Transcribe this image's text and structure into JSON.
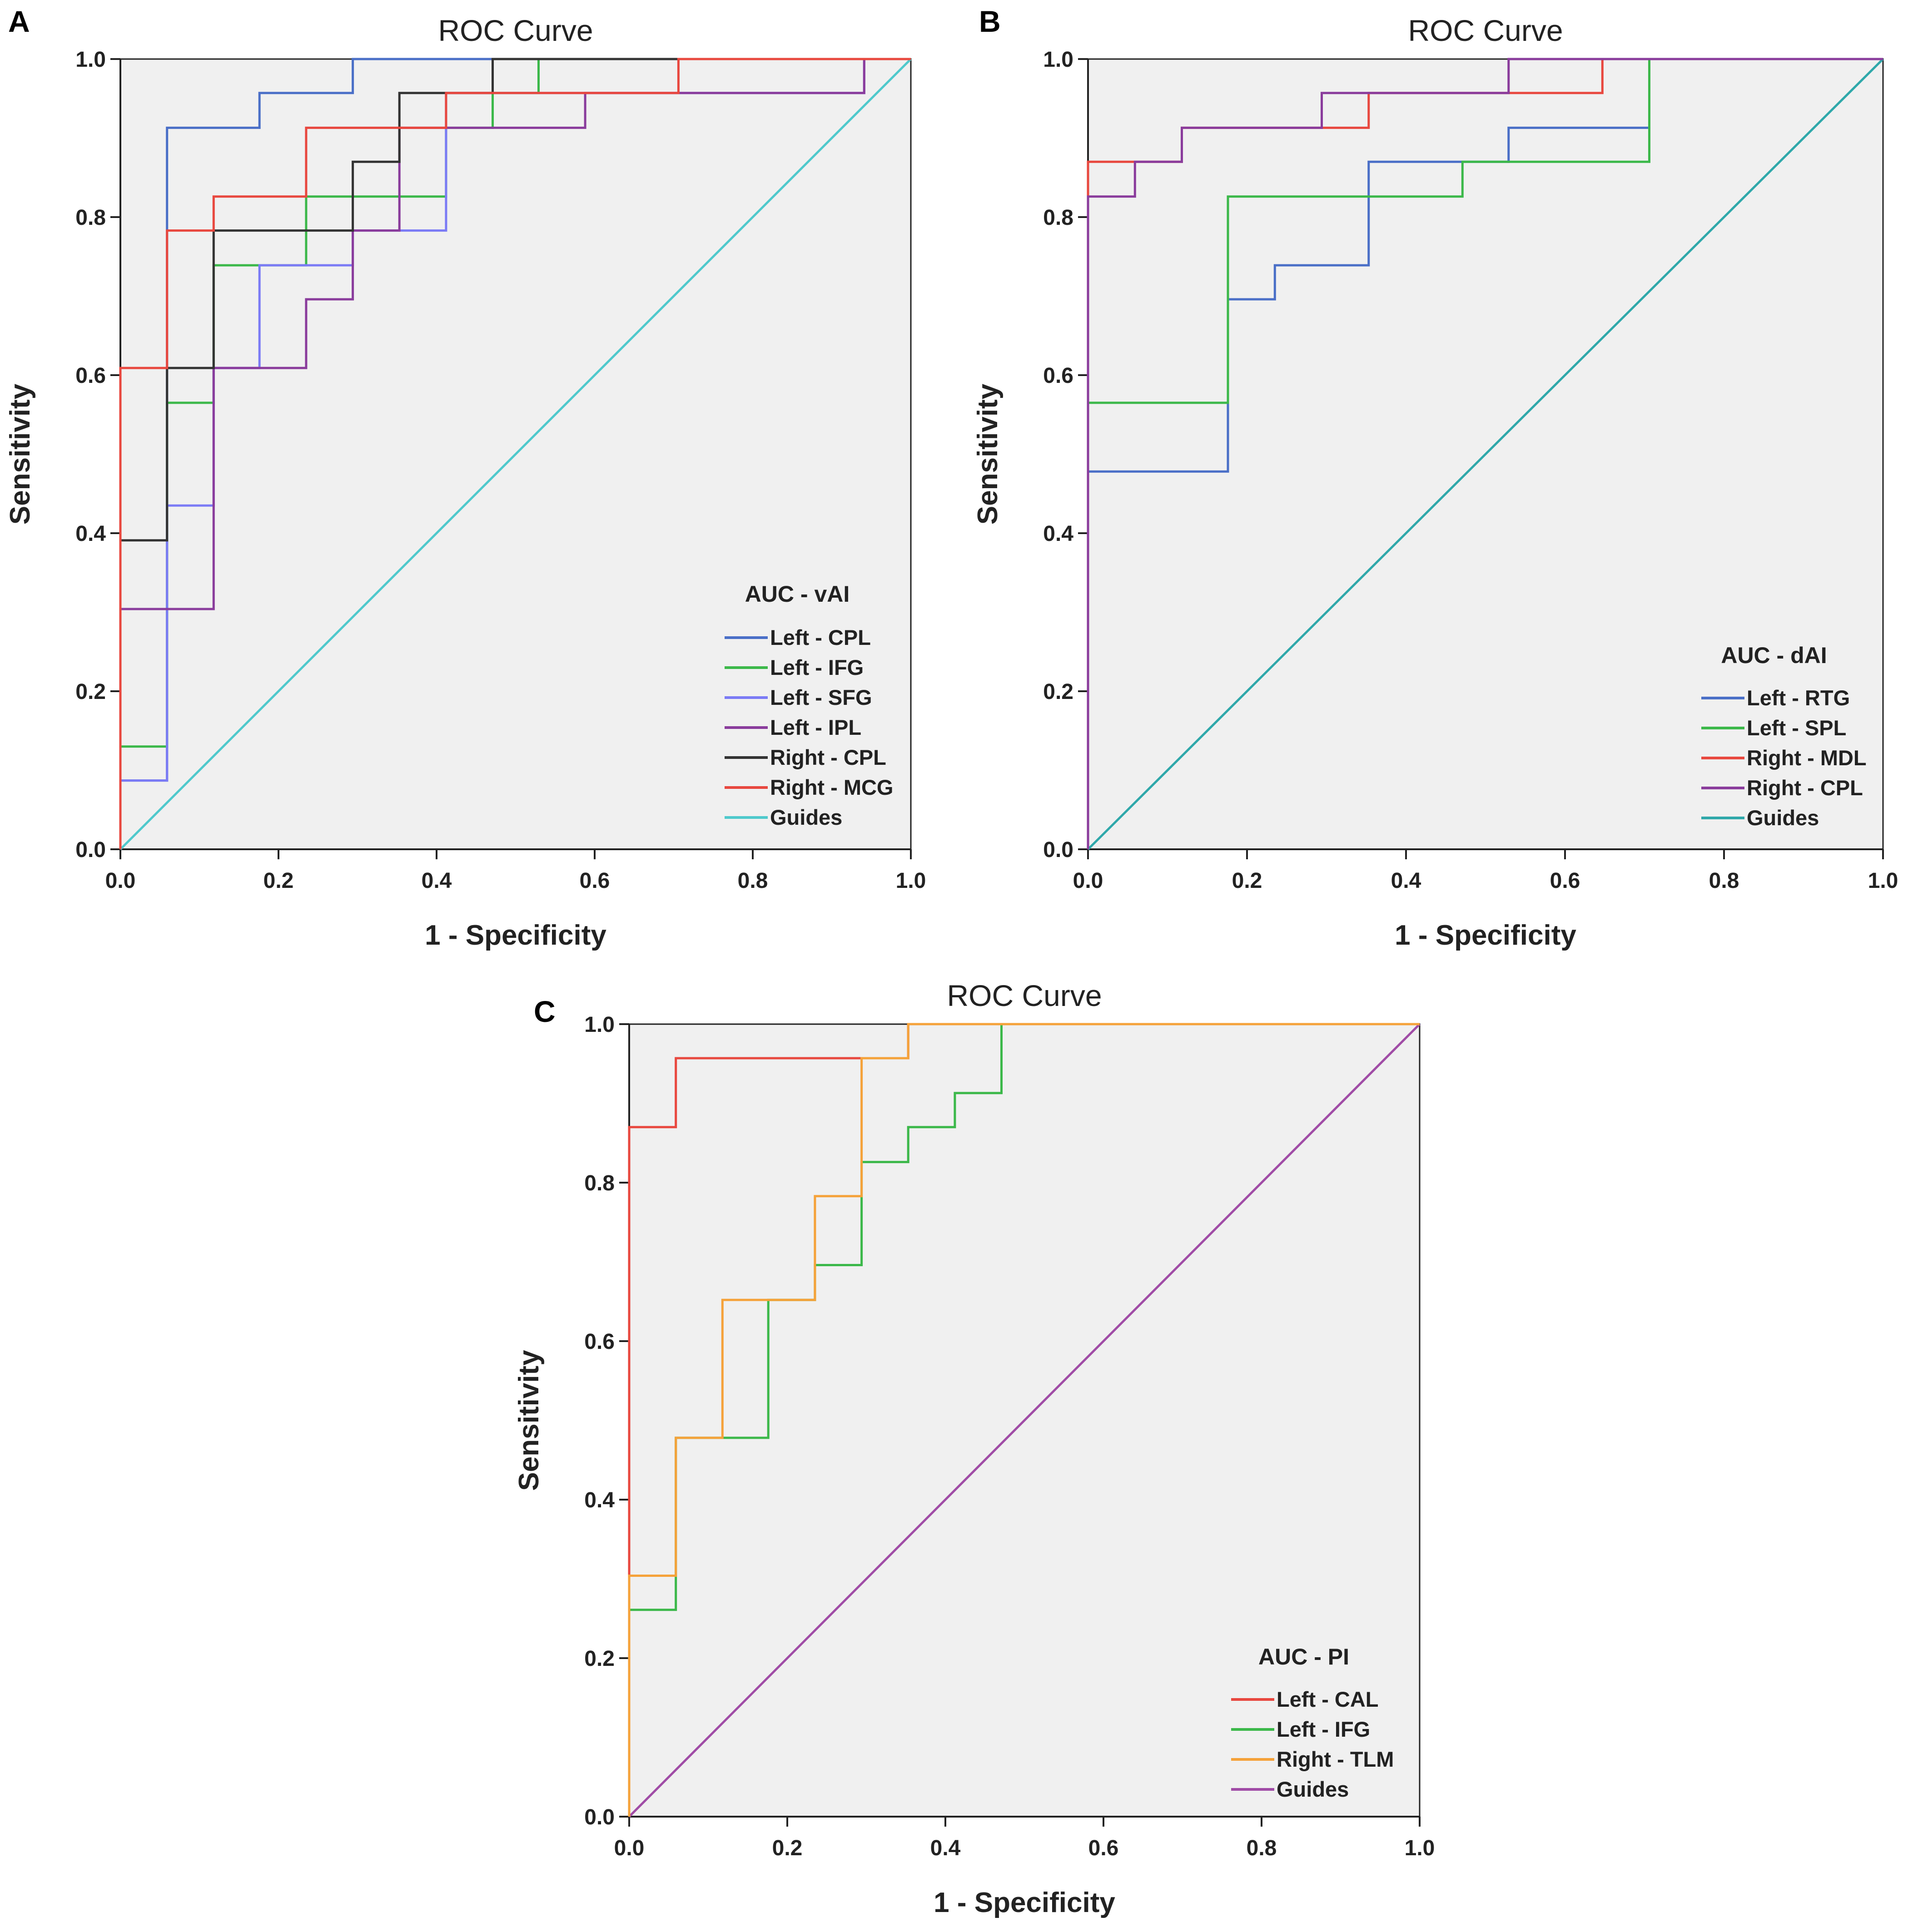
{
  "chart_data": [
    {
      "panel": "A",
      "type": "line",
      "title": "ROC Curve",
      "xlabel": "1 - Specificity",
      "ylabel": "Sensitivity",
      "xlim": [
        0,
        1
      ],
      "ylim": [
        0,
        1
      ],
      "xticks": [
        "0.0",
        "0.2",
        "0.4",
        "0.6",
        "0.8",
        "1.0"
      ],
      "yticks": [
        "0.0",
        "0.2",
        "0.4",
        "0.6",
        "0.8",
        "1.0"
      ],
      "legend": {
        "title": "AUC - vAI",
        "placement": "bottom-right"
      },
      "series": [
        {
          "name": "Left - CPL",
          "color": "#4a6fc7",
          "points": [
            [
              0,
              0
            ],
            [
              0,
              0.087
            ],
            [
              0.059,
              0.087
            ],
            [
              0.059,
              0.913
            ],
            [
              0.176,
              0.913
            ],
            [
              0.176,
              0.957
            ],
            [
              0.294,
              0.957
            ],
            [
              0.294,
              1.0
            ],
            [
              1.0,
              1.0
            ]
          ]
        },
        {
          "name": "Left - IFG",
          "color": "#3cb84a",
          "points": [
            [
              0,
              0
            ],
            [
              0,
              0.13
            ],
            [
              0.059,
              0.13
            ],
            [
              0.059,
              0.565
            ],
            [
              0.118,
              0.565
            ],
            [
              0.118,
              0.739
            ],
            [
              0.235,
              0.739
            ],
            [
              0.235,
              0.826
            ],
            [
              0.412,
              0.826
            ],
            [
              0.412,
              0.913
            ],
            [
              0.471,
              0.913
            ],
            [
              0.471,
              0.957
            ],
            [
              0.529,
              0.957
            ],
            [
              0.529,
              1.0
            ],
            [
              1.0,
              1.0
            ]
          ]
        },
        {
          "name": "Left - SFG",
          "color": "#7b7bf5",
          "points": [
            [
              0,
              0
            ],
            [
              0,
              0.087
            ],
            [
              0.059,
              0.087
            ],
            [
              0.059,
              0.435
            ],
            [
              0.118,
              0.435
            ],
            [
              0.118,
              0.609
            ],
            [
              0.176,
              0.609
            ],
            [
              0.176,
              0.739
            ],
            [
              0.294,
              0.739
            ],
            [
              0.294,
              0.783
            ],
            [
              0.412,
              0.783
            ],
            [
              0.412,
              0.957
            ],
            [
              0.941,
              0.957
            ],
            [
              0.941,
              1.0
            ],
            [
              1.0,
              1.0
            ]
          ]
        },
        {
          "name": "Left - IPL",
          "color": "#8a3c9c",
          "points": [
            [
              0,
              0
            ],
            [
              0,
              0.304
            ],
            [
              0.118,
              0.304
            ],
            [
              0.118,
              0.609
            ],
            [
              0.235,
              0.609
            ],
            [
              0.235,
              0.696
            ],
            [
              0.294,
              0.696
            ],
            [
              0.294,
              0.783
            ],
            [
              0.353,
              0.783
            ],
            [
              0.353,
              0.913
            ],
            [
              0.588,
              0.913
            ],
            [
              0.588,
              0.957
            ],
            [
              0.941,
              0.957
            ],
            [
              0.941,
              1.0
            ],
            [
              1.0,
              1.0
            ]
          ]
        },
        {
          "name": "Right - CPL",
          "color": "#333333",
          "points": [
            [
              0,
              0
            ],
            [
              0,
              0.391
            ],
            [
              0.059,
              0.391
            ],
            [
              0.059,
              0.609
            ],
            [
              0.118,
              0.609
            ],
            [
              0.118,
              0.783
            ],
            [
              0.294,
              0.783
            ],
            [
              0.294,
              0.87
            ],
            [
              0.353,
              0.87
            ],
            [
              0.353,
              0.957
            ],
            [
              0.471,
              0.957
            ],
            [
              0.471,
              1.0
            ],
            [
              1.0,
              1.0
            ]
          ]
        },
        {
          "name": "Right - MCG",
          "color": "#e8483f",
          "points": [
            [
              0,
              0
            ],
            [
              0,
              0.609
            ],
            [
              0.059,
              0.609
            ],
            [
              0.059,
              0.783
            ],
            [
              0.118,
              0.783
            ],
            [
              0.118,
              0.826
            ],
            [
              0.235,
              0.826
            ],
            [
              0.235,
              0.913
            ],
            [
              0.412,
              0.913
            ],
            [
              0.412,
              0.957
            ],
            [
              0.706,
              0.957
            ],
            [
              0.706,
              1.0
            ],
            [
              1.0,
              1.0
            ]
          ]
        },
        {
          "name": "Guides",
          "color": "#4fc9cc",
          "points": [
            [
              0,
              0
            ],
            [
              1,
              1
            ]
          ]
        }
      ]
    },
    {
      "panel": "B",
      "type": "line",
      "title": "ROC Curve",
      "xlabel": "1 - Specificity",
      "ylabel": "Sensitivity",
      "xlim": [
        0,
        1
      ],
      "ylim": [
        0,
        1
      ],
      "xticks": [
        "0.0",
        "0.2",
        "0.4",
        "0.6",
        "0.8",
        "1.0"
      ],
      "yticks": [
        "0.0",
        "0.2",
        "0.4",
        "0.6",
        "0.8",
        "1.0"
      ],
      "legend": {
        "title": "AUC - dAI",
        "placement": "bottom-right"
      },
      "series": [
        {
          "name": "Left - RTG",
          "color": "#4a6fc7",
          "points": [
            [
              0,
              0
            ],
            [
              0,
              0.478
            ],
            [
              0.176,
              0.478
            ],
            [
              0.176,
              0.696
            ],
            [
              0.235,
              0.696
            ],
            [
              0.235,
              0.739
            ],
            [
              0.353,
              0.739
            ],
            [
              0.353,
              0.87
            ],
            [
              0.529,
              0.87
            ],
            [
              0.529,
              0.913
            ],
            [
              0.706,
              0.913
            ],
            [
              0.706,
              1.0
            ],
            [
              1.0,
              1.0
            ]
          ]
        },
        {
          "name": "Left - SPL",
          "color": "#3cb84a",
          "points": [
            [
              0,
              0
            ],
            [
              0,
              0.565
            ],
            [
              0.176,
              0.565
            ],
            [
              0.176,
              0.826
            ],
            [
              0.471,
              0.826
            ],
            [
              0.471,
              0.87
            ],
            [
              0.706,
              0.87
            ],
            [
              0.706,
              1.0
            ],
            [
              1.0,
              1.0
            ]
          ]
        },
        {
          "name": "Right - MDL",
          "color": "#e8483f",
          "points": [
            [
              0,
              0
            ],
            [
              0,
              0.87
            ],
            [
              0.118,
              0.87
            ],
            [
              0.118,
              0.913
            ],
            [
              0.353,
              0.913
            ],
            [
              0.353,
              0.957
            ],
            [
              0.647,
              0.957
            ],
            [
              0.647,
              1.0
            ],
            [
              1.0,
              1.0
            ]
          ]
        },
        {
          "name": "Right - CPL",
          "color": "#8a3c9c",
          "points": [
            [
              0,
              0
            ],
            [
              0,
              0.826
            ],
            [
              0.059,
              0.826
            ],
            [
              0.059,
              0.87
            ],
            [
              0.118,
              0.87
            ],
            [
              0.118,
              0.913
            ],
            [
              0.294,
              0.913
            ],
            [
              0.294,
              0.957
            ],
            [
              0.529,
              0.957
            ],
            [
              0.529,
              1.0
            ],
            [
              1.0,
              1.0
            ]
          ]
        },
        {
          "name": "Guides",
          "color": "#2fa8aa",
          "points": [
            [
              0,
              0
            ],
            [
              1,
              1
            ]
          ]
        }
      ]
    },
    {
      "panel": "C",
      "type": "line",
      "title": "ROC Curve",
      "xlabel": "1 - Specificity",
      "ylabel": "Sensitivity",
      "xlim": [
        0,
        1
      ],
      "ylim": [
        0,
        1
      ],
      "xticks": [
        "0.0",
        "0.2",
        "0.4",
        "0.6",
        "0.8",
        "1.0"
      ],
      "yticks": [
        "0.0",
        "0.2",
        "0.4",
        "0.6",
        "0.8",
        "1.0"
      ],
      "legend": {
        "title": "AUC - PI",
        "placement": "bottom-right"
      },
      "series": [
        {
          "name": "Left - CAL",
          "color": "#e8483f",
          "points": [
            [
              0,
              0
            ],
            [
              0,
              0.87
            ],
            [
              0.059,
              0.87
            ],
            [
              0.059,
              0.957
            ],
            [
              0.353,
              0.957
            ],
            [
              0.353,
              1.0
            ],
            [
              1.0,
              1.0
            ]
          ]
        },
        {
          "name": "Left - IFG",
          "color": "#3cb84a",
          "points": [
            [
              0,
              0
            ],
            [
              0,
              0.261
            ],
            [
              0.059,
              0.261
            ],
            [
              0.059,
              0.478
            ],
            [
              0.176,
              0.478
            ],
            [
              0.176,
              0.652
            ],
            [
              0.235,
              0.652
            ],
            [
              0.235,
              0.696
            ],
            [
              0.294,
              0.696
            ],
            [
              0.294,
              0.826
            ],
            [
              0.353,
              0.826
            ],
            [
              0.353,
              0.87
            ],
            [
              0.412,
              0.87
            ],
            [
              0.412,
              0.913
            ],
            [
              0.471,
              0.913
            ],
            [
              0.471,
              1.0
            ],
            [
              1.0,
              1.0
            ]
          ]
        },
        {
          "name": "Right - TLM",
          "color": "#f5a23a",
          "points": [
            [
              0,
              0
            ],
            [
              0,
              0.304
            ],
            [
              0.059,
              0.304
            ],
            [
              0.059,
              0.478
            ],
            [
              0.118,
              0.478
            ],
            [
              0.118,
              0.652
            ],
            [
              0.235,
              0.652
            ],
            [
              0.235,
              0.783
            ],
            [
              0.294,
              0.783
            ],
            [
              0.294,
              0.957
            ],
            [
              0.353,
              0.957
            ],
            [
              0.353,
              1.0
            ],
            [
              1.0,
              1.0
            ]
          ]
        },
        {
          "name": "Guides",
          "color": "#a04ca6",
          "points": [
            [
              0,
              0
            ],
            [
              1,
              1
            ]
          ]
        }
      ]
    }
  ]
}
